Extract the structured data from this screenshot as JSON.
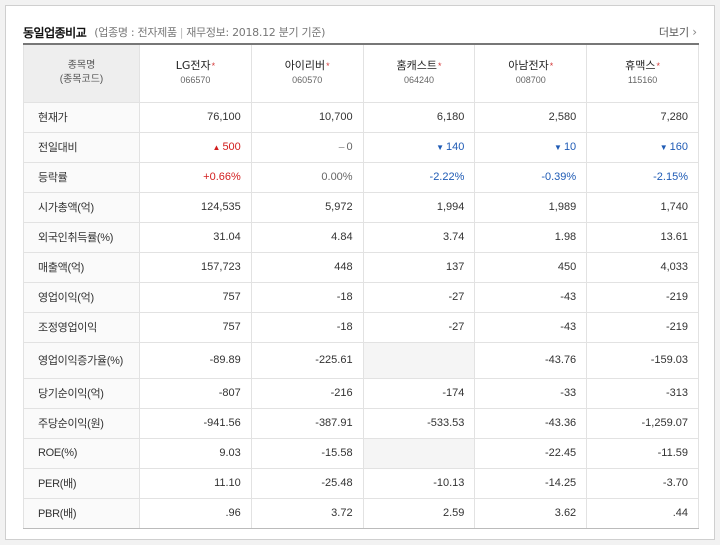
{
  "header": {
    "title": "동일업종비교",
    "sector_label": "업종명 : 전자제품",
    "basis_label": "재무정보: 2018.12 분기 기준",
    "more_label": "더보기",
    "more_icon": "chevron-right-icon"
  },
  "table": {
    "corner": {
      "line1": "종목명",
      "line2": "(종목코드)"
    },
    "companies": [
      {
        "name": "LG전자",
        "code": "066570"
      },
      {
        "name": "아이리버",
        "code": "060570"
      },
      {
        "name": "홈캐스트",
        "code": "064240"
      },
      {
        "name": "아남전자",
        "code": "008700"
      },
      {
        "name": "휴맥스",
        "code": "115160"
      }
    ],
    "star_glyph": "*",
    "rows": [
      {
        "label": "현재가",
        "cells": [
          "76,100",
          "10,700",
          "6,180",
          "2,580",
          "7,280"
        ]
      },
      {
        "label": "전일대비",
        "cells": [
          "500",
          "0",
          "140",
          "10",
          "160"
        ],
        "directions": [
          "up",
          "flat",
          "down",
          "down",
          "down"
        ]
      },
      {
        "label": "등락률",
        "cells": [
          "+0.66%",
          "0.00%",
          "-2.22%",
          "-0.39%",
          "-2.15%"
        ],
        "directions": [
          "up",
          "flat",
          "down",
          "down",
          "down"
        ]
      },
      {
        "label": "시가총액(억)",
        "cells": [
          "124,535",
          "5,972",
          "1,994",
          "1,989",
          "1,740"
        ]
      },
      {
        "label": "외국인취득률(%)",
        "cells": [
          "31.04",
          "4.84",
          "3.74",
          "1.98",
          "13.61"
        ]
      },
      {
        "label": "매출액(억)",
        "cells": [
          "157,723",
          "448",
          "137",
          "450",
          "4,033"
        ]
      },
      {
        "label": "영업이익(억)",
        "cells": [
          "757",
          "-18",
          "-27",
          "-43",
          "-219"
        ]
      },
      {
        "label": "조정영업이익",
        "cells": [
          "757",
          "-18",
          "-27",
          "-43",
          "-219"
        ]
      },
      {
        "label": "영업이익증가율(%)",
        "cells": [
          "-89.89",
          "-225.61",
          "",
          "-43.76",
          "-159.03"
        ],
        "tall": true
      },
      {
        "label": "당기순이익(억)",
        "cells": [
          "-807",
          "-216",
          "-174",
          "-33",
          "-313"
        ]
      },
      {
        "label": "주당순이익(원)",
        "cells": [
          "-941.56",
          "-387.91",
          "-533.53",
          "-43.36",
          "-1,259.07"
        ]
      },
      {
        "label": "ROE(%)",
        "cells": [
          "9.03",
          "-15.58",
          "",
          "-22.45",
          "-11.59"
        ]
      },
      {
        "label": "PER(배)",
        "cells": [
          "11.10",
          "-25.48",
          "-10.13",
          "-14.25",
          "-3.70"
        ]
      },
      {
        "label": "PBR(배)",
        "cells": [
          ".96",
          "3.72",
          "2.59",
          "3.62",
          ".44"
        ]
      }
    ]
  },
  "colors": {
    "up": "#d21e1e",
    "down": "#1f5bb5",
    "flat": "#666666",
    "star": "#d43a3a"
  },
  "icons": {
    "up": "triangle-up-icon",
    "down": "triangle-down-icon",
    "flat": "dash-icon"
  }
}
